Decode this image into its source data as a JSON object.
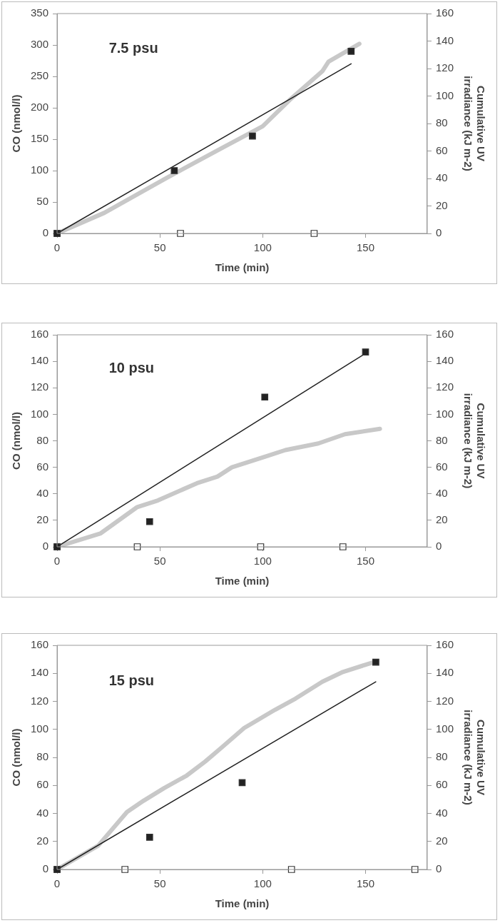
{
  "chart_data": [
    {
      "type": "scatter",
      "title": "7.5 psu",
      "xlabel": "Time (min)",
      "ylabel": "CO (nmol/l)",
      "y2label": "Cumulative UV irradiance (kJ m-2)",
      "xlim": [
        0,
        180
      ],
      "xticks": [
        0,
        50,
        100,
        150
      ],
      "ylim": [
        0,
        350
      ],
      "yticks": [
        0,
        50,
        100,
        150,
        200,
        250,
        300,
        350
      ],
      "y2lim": [
        0,
        160
      ],
      "y2ticks": [
        0,
        20,
        40,
        60,
        80,
        100,
        120,
        140,
        160
      ],
      "grid": false,
      "legend": false,
      "series": [
        {
          "type": "line",
          "axis": "y2",
          "color": "#c8c8c8",
          "marker": "none",
          "x": [
            0,
            23,
            54,
            80,
            100,
            113,
            129,
            132,
            147
          ],
          "values": [
            0,
            15,
            41,
            62,
            78,
            97,
            118,
            125,
            138
          ]
        },
        {
          "type": "line",
          "color": "#222222",
          "marker": "none",
          "x": [
            0,
            143
          ],
          "values": [
            0,
            270
          ]
        },
        {
          "color": "#222222",
          "marker": "square",
          "x": [
            0,
            57,
            95,
            143
          ],
          "values": [
            0,
            100,
            155,
            290
          ]
        },
        {
          "color": "#ffffff",
          "marker": "square",
          "x": [
            0,
            60,
            125
          ],
          "values": [
            0,
            0,
            0
          ]
        }
      ]
    },
    {
      "type": "scatter",
      "title": "10 psu",
      "xlabel": "Time (min)",
      "ylabel": "CO (nmol/l)",
      "y2label": "Cumulative UV irradiance (kJ m-2)",
      "xlim": [
        0,
        180
      ],
      "xticks": [
        0,
        50,
        100,
        150
      ],
      "ylim": [
        0,
        160
      ],
      "yticks": [
        0,
        20,
        40,
        60,
        80,
        100,
        120,
        140,
        160
      ],
      "y2lim": [
        0,
        160
      ],
      "y2ticks": [
        0,
        20,
        40,
        60,
        80,
        100,
        120,
        140,
        160
      ],
      "grid": false,
      "legend": false,
      "series": [
        {
          "type": "line",
          "axis": "y2",
          "color": "#c8c8c8",
          "marker": "none",
          "x": [
            0,
            21,
            39,
            49,
            68,
            78,
            85,
            101,
            111,
            127,
            140,
            157
          ],
          "values": [
            0,
            10,
            30,
            35,
            48,
            53,
            60,
            68,
            73,
            78,
            85,
            89
          ]
        },
        {
          "type": "line",
          "color": "#222222",
          "marker": "none",
          "x": [
            0,
            150
          ],
          "values": [
            0,
            146
          ]
        },
        {
          "color": "#222222",
          "marker": "square",
          "x": [
            0,
            45,
            101,
            150
          ],
          "values": [
            0,
            19,
            113,
            147
          ]
        },
        {
          "color": "#ffffff",
          "marker": "square",
          "x": [
            0,
            39,
            99,
            139
          ],
          "values": [
            0,
            0,
            0,
            0
          ]
        }
      ]
    },
    {
      "type": "scatter",
      "title": "15 psu",
      "xlabel": "Time (min)",
      "ylabel": "CO (nmol/l)",
      "y2label": "Cumulative UV irradiance (kJ m-2)",
      "xlim": [
        0,
        180
      ],
      "xticks": [
        0,
        50,
        100,
        150
      ],
      "ylim": [
        0,
        160
      ],
      "yticks": [
        0,
        20,
        40,
        60,
        80,
        100,
        120,
        140,
        160
      ],
      "y2lim": [
        0,
        160
      ],
      "y2ticks": [
        0,
        20,
        40,
        60,
        80,
        100,
        120,
        140,
        160
      ],
      "grid": false,
      "legend": false,
      "series": [
        {
          "type": "line",
          "axis": "y2",
          "color": "#c8c8c8",
          "marker": "none",
          "x": [
            0,
            20,
            34,
            42,
            52,
            63,
            72,
            80,
            91,
            106,
            116,
            129,
            139,
            154
          ],
          "values": [
            0,
            17,
            41,
            49,
            58,
            67,
            77,
            87,
            101,
            114,
            122,
            134,
            141,
            148
          ]
        },
        {
          "type": "line",
          "color": "#222222",
          "marker": "none",
          "x": [
            0,
            155
          ],
          "values": [
            0,
            134
          ]
        },
        {
          "color": "#222222",
          "marker": "square",
          "x": [
            0,
            45,
            90,
            155
          ],
          "values": [
            0,
            23,
            62,
            148
          ]
        },
        {
          "color": "#ffffff",
          "marker": "square",
          "x": [
            0,
            33,
            114,
            174
          ],
          "values": [
            0,
            0,
            0,
            0
          ]
        }
      ]
    }
  ]
}
